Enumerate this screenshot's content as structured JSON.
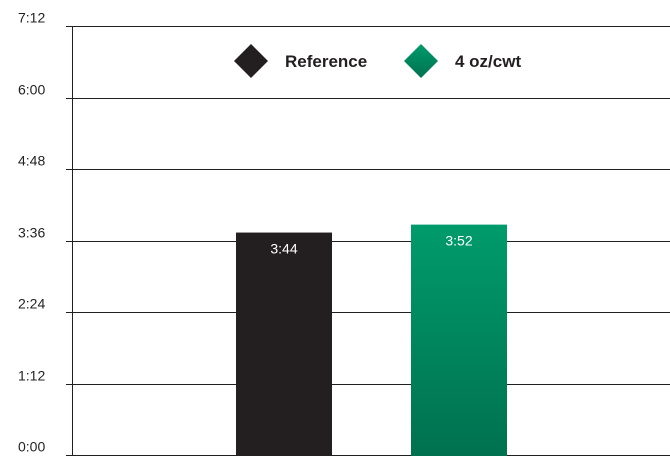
{
  "chart_data": {
    "type": "bar",
    "title": "",
    "xlabel": "",
    "ylabel": "",
    "y_unit": "minutes (m:ss)",
    "ylim": [
      0,
      432
    ],
    "yticks": [
      {
        "value": 0,
        "label": "0:00"
      },
      {
        "value": 72,
        "label": "1:12"
      },
      {
        "value": 144,
        "label": "2:24"
      },
      {
        "value": 216,
        "label": "3:36"
      },
      {
        "value": 288,
        "label": "4:48"
      },
      {
        "value": 360,
        "label": "6:00"
      },
      {
        "value": 432,
        "label": "7:12"
      }
    ],
    "grid": true,
    "legend_position": "top-center",
    "series": [
      {
        "name": "Reference",
        "value": 224,
        "value_label": "3:44",
        "color": "#231f20",
        "color_dark": "#231f20"
      },
      {
        "name": "4 oz/cwt",
        "value": 232,
        "value_label": "3:52",
        "color": "#009b6b",
        "color_dark": "#00714f"
      }
    ]
  }
}
